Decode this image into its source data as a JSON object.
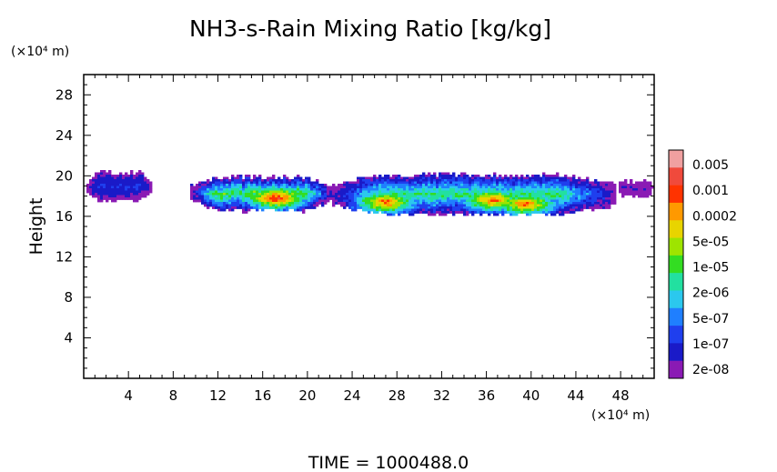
{
  "chart_data": {
    "type": "heatmap",
    "title": "NH3-s-Rain Mixing Ratio [kg/kg]",
    "ylabel": "Height",
    "y_unit": "(×10⁴ m)",
    "x_unit": "(×10⁴ m)",
    "footer": "TIME  =  1000488.0",
    "xlim": [
      0,
      51
    ],
    "ylim": [
      0,
      30
    ],
    "x_ticks": [
      4,
      8,
      12,
      16,
      20,
      24,
      28,
      32,
      36,
      40,
      44,
      48
    ],
    "y_ticks": [
      4,
      8,
      12,
      16,
      20,
      24,
      28
    ],
    "colorbar": {
      "labels": [
        "0.005",
        "0.001",
        "0.0002",
        "5e-05",
        "1e-05",
        "2e-06",
        "5e-07",
        "1e-07",
        "2e-08"
      ],
      "colors": [
        "#f0a0a0",
        "#f04a3c",
        "#ff3300",
        "#ff9900",
        "#e8d400",
        "#9ee400",
        "#33dd22",
        "#22e0a0",
        "#2bc8ee",
        "#1f7fff",
        "#1f3fee",
        "#1a1ac8",
        "#8a1ab4"
      ]
    },
    "regions": [
      {
        "x0": 0.2,
        "x1": 6.2,
        "base": 17.6,
        "top": 20.3,
        "peak_level": 9
      },
      {
        "x0": 9.6,
        "x1": 22.2,
        "base": 16.6,
        "top": 19.9,
        "peak_level": 1
      },
      {
        "x0": 22.2,
        "x1": 47.5,
        "base": 16.2,
        "top": 20.1,
        "peak_level": 2
      },
      {
        "x0": 47.5,
        "x1": 51.0,
        "base": 18.0,
        "top": 19.5,
        "peak_level": 11
      }
    ],
    "maxima": [
      {
        "x": 17.2,
        "y": 17.8,
        "level": 1
      },
      {
        "x": 27.0,
        "y": 17.4,
        "level": 2
      },
      {
        "x": 36.5,
        "y": 17.6,
        "level": 2
      },
      {
        "x": 39.5,
        "y": 17.2,
        "level": 2
      }
    ],
    "grid": false
  }
}
